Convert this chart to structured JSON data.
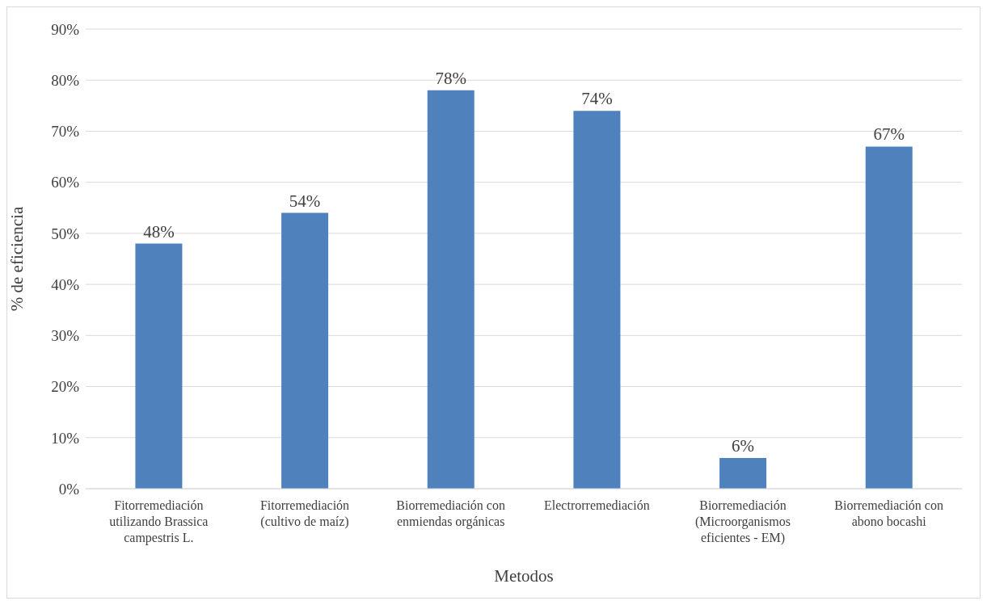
{
  "chart_data": {
    "type": "bar",
    "xlabel": "Metodos",
    "ylabel": "% de eficiencia",
    "categories": [
      "Fitorremediación utilizando Brassica campestris L.",
      "Fitorremediación (cultivo de maíz)",
      "Biorremediación con enmiendas orgánicas",
      "Electrorremediación",
      "Biorremediación (Microorganismos eficientes - EM)",
      "Biorremediación con abono bocashi"
    ],
    "values": [
      48,
      54,
      78,
      74,
      6,
      67
    ],
    "value_labels": [
      "48%",
      "54%",
      "78%",
      "74%",
      "6%",
      "67%"
    ],
    "color": "#4f81bd",
    "ylim": [
      0,
      90
    ],
    "yticks": [
      {
        "value": 0,
        "label": "0%"
      },
      {
        "value": 10,
        "label": "10%"
      },
      {
        "value": 20,
        "label": "20%"
      },
      {
        "value": 30,
        "label": "30%"
      },
      {
        "value": 40,
        "label": "40%"
      },
      {
        "value": 50,
        "label": "50%"
      },
      {
        "value": 60,
        "label": "60%"
      },
      {
        "value": 70,
        "label": "70%"
      },
      {
        "value": 80,
        "label": "80%"
      },
      {
        "value": 90,
        "label": "90%"
      }
    ],
    "grid": "y",
    "legend": false
  }
}
